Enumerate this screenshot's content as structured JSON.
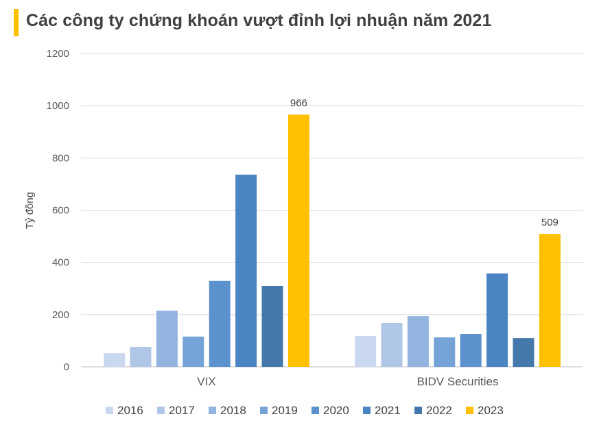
{
  "header": {
    "title": "Các công ty chứng khoán vượt đỉnh lợi nhuận năm 2021",
    "accent_color": "#FFC000"
  },
  "chart_data": {
    "type": "bar",
    "title": "Các công ty chứng khoán vượt đỉnh lợi nhuận năm 2021",
    "xlabel": "",
    "ylabel": "Tỷ đồng",
    "ylim": [
      0,
      1200
    ],
    "yticks": [
      0,
      200,
      400,
      600,
      800,
      1000,
      1200
    ],
    "grid": true,
    "legend_position": "bottom",
    "categories": [
      "VIX",
      "BIDV Securities"
    ],
    "series": [
      {
        "name": "2016",
        "color": "#C9D8EE",
        "values": [
          52,
          118
        ]
      },
      {
        "name": "2017",
        "color": "#AFC6E6",
        "values": [
          76,
          168
        ]
      },
      {
        "name": "2018",
        "color": "#93B4DE",
        "values": [
          215,
          194
        ]
      },
      {
        "name": "2019",
        "color": "#75A2D7",
        "values": [
          116,
          113
        ]
      },
      {
        "name": "2020",
        "color": "#5B91CD",
        "values": [
          329,
          126
        ]
      },
      {
        "name": "2021",
        "color": "#4B84C2",
        "values": [
          736,
          358
        ]
      },
      {
        "name": "2022",
        "color": "#4578AB",
        "values": [
          310,
          110
        ]
      },
      {
        "name": "2023",
        "color": "#FFC000",
        "values": [
          966,
          509
        ]
      }
    ],
    "data_labels": [
      {
        "series": "2023",
        "category": "VIX",
        "text": "966"
      },
      {
        "series": "2023",
        "category": "BIDV Securities",
        "text": "509"
      }
    ]
  }
}
